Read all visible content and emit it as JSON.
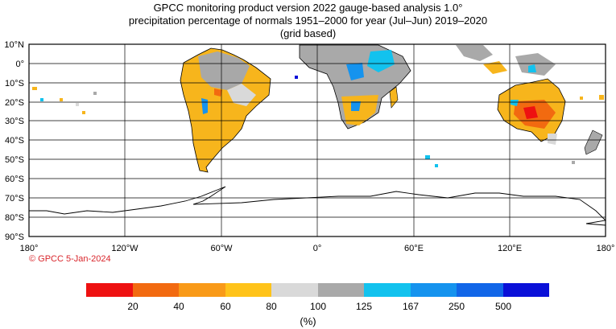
{
  "titles": {
    "line1": "GPCC monitoring product version 2022 gauge-based analysis 1.0°",
    "line2": "precipitation percentage of normals 1951–2000 for year (Jul–Jun) 2019–2020",
    "line3": "(grid based)"
  },
  "credit": "© GPCC 5-Jan-2024",
  "credit_color": "#d9262c",
  "lat_labels": [
    "10°N",
    "0°",
    "10°S",
    "20°S",
    "30°S",
    "40°S",
    "50°S",
    "60°S",
    "70°S",
    "80°S",
    "90°S"
  ],
  "lon_labels": [
    "180°",
    "120°W",
    "60°W",
    "0°",
    "60°E",
    "120°E",
    "180°"
  ],
  "colorbar": {
    "colors": [
      "#ee1111",
      "#f26a10",
      "#f99a18",
      "#ffc31a",
      "#d9d9d9",
      "#a9a9a9",
      "#12c2ee",
      "#1593ee",
      "#1166e8",
      "#0a10d8"
    ],
    "labels": [
      "20",
      "40",
      "60",
      "80",
      "100",
      "125",
      "167",
      "250",
      "500"
    ],
    "unit": "(%)"
  }
}
